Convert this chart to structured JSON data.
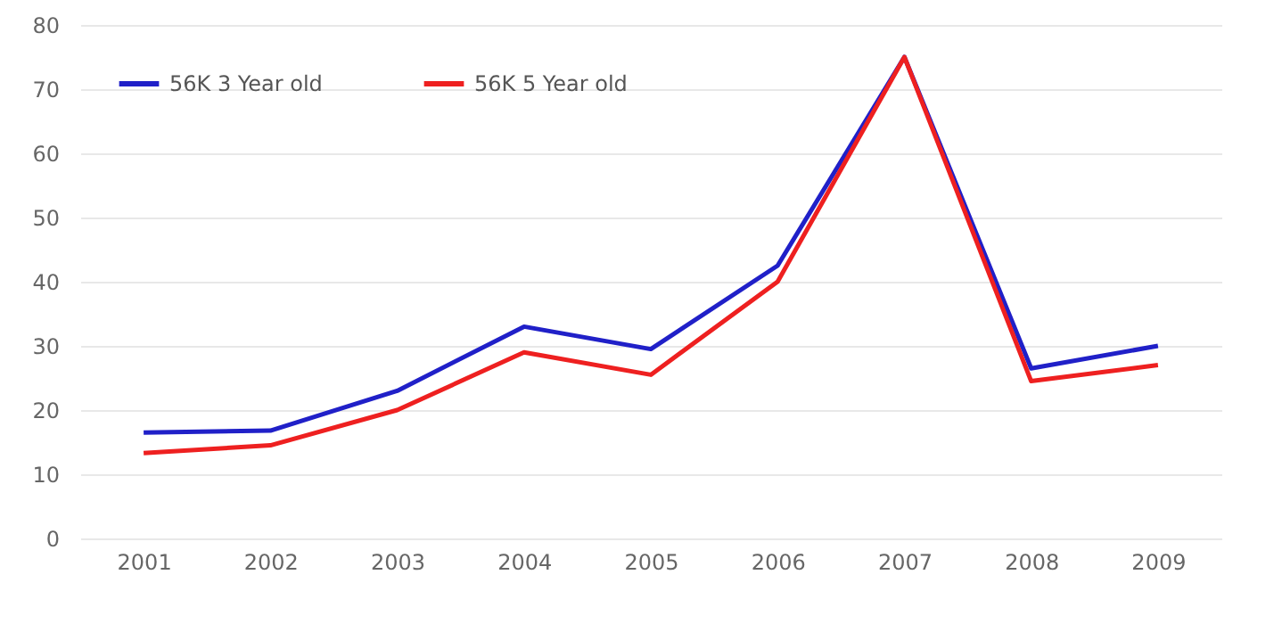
{
  "chart_data": {
    "type": "line",
    "categories": [
      "2001",
      "2002",
      "2003",
      "2004",
      "2005",
      "2006",
      "2007",
      "2008",
      "2009"
    ],
    "series": [
      {
        "name": "56K 3 Year old",
        "color": "#2020c8",
        "values": [
          16.5,
          16.8,
          23,
          33,
          29.5,
          42.5,
          75,
          26.5,
          30
        ]
      },
      {
        "name": "56K 5 Year old",
        "color": "#ee2020",
        "values": [
          13.3,
          14.5,
          20,
          29,
          25.5,
          40,
          75,
          24.5,
          27
        ]
      }
    ],
    "ylim": [
      0,
      80
    ],
    "yticks": [
      0,
      10,
      20,
      30,
      40,
      50,
      60,
      70,
      80
    ],
    "grid": "y",
    "legend": "top left",
    "marker": "none",
    "line_style": "solid"
  }
}
